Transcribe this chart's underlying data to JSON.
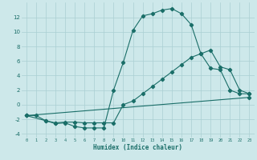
{
  "xlabel": "Humidex (Indice chaleur)",
  "background_color": "#cde8ea",
  "grid_color": "#aacfd2",
  "line_color": "#1a6e68",
  "xlim": [
    -0.5,
    23.5
  ],
  "ylim": [
    -4.5,
    14
  ],
  "xtick_labels": [
    "0",
    "1",
    "2",
    "3",
    "4",
    "5",
    "6",
    "7",
    "8",
    "9",
    "10",
    "11",
    "12",
    "13",
    "14",
    "15",
    "16",
    "17",
    "18",
    "19",
    "20",
    "21",
    "22",
    "23"
  ],
  "ytick_labels": [
    "-4",
    "-2",
    "0",
    "2",
    "4",
    "6",
    "8",
    "10",
    "12"
  ],
  "ytick_vals": [
    -4,
    -2,
    0,
    2,
    4,
    6,
    8,
    10,
    12
  ],
  "line1_x": [
    0,
    1,
    2,
    3,
    4,
    5,
    6,
    7,
    8,
    9,
    10,
    11,
    12,
    13,
    14,
    15,
    16,
    17,
    18,
    19,
    20,
    21,
    22,
    23
  ],
  "line1_y": [
    -1.5,
    -1.5,
    -2.2,
    -2.6,
    -2.5,
    -3.0,
    -3.2,
    -3.2,
    -3.2,
    2.0,
    5.8,
    10.2,
    12.2,
    12.5,
    13.0,
    13.2,
    12.5,
    11.0,
    7.0,
    5.0,
    4.8,
    2.0,
    1.5,
    1.5
  ],
  "line2_x": [
    0,
    2,
    3,
    4,
    5,
    6,
    7,
    8,
    9,
    10,
    11,
    12,
    13,
    14,
    15,
    16,
    17,
    18,
    19,
    20,
    21,
    22,
    23
  ],
  "line2_y": [
    -1.5,
    -2.2,
    -2.5,
    -2.4,
    -2.4,
    -2.5,
    -2.5,
    -2.5,
    -2.5,
    0.0,
    0.5,
    1.5,
    2.5,
    3.5,
    4.5,
    5.5,
    6.5,
    7.0,
    7.5,
    5.2,
    4.8,
    2.0,
    1.5
  ],
  "line3_x": [
    0,
    23
  ],
  "line3_y": [
    -1.5,
    1.0
  ]
}
